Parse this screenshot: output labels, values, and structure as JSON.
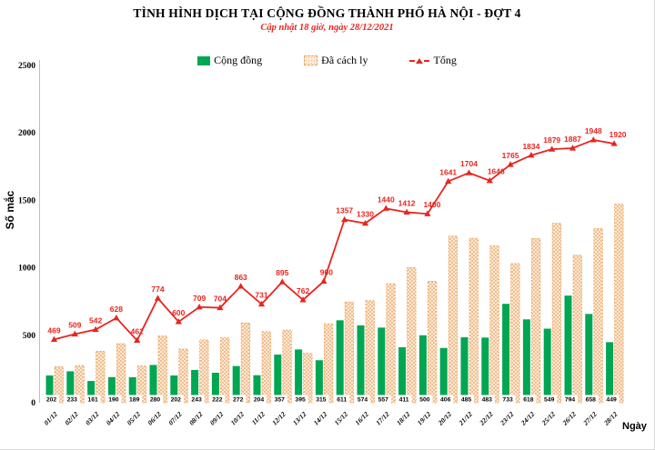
{
  "header": {
    "title": "TÌNH HÌNH DỊCH TẠI CỘNG ĐỒNG THÀNH PHỐ HÀ NỘI - ĐỢT 4",
    "subtitle": "Cập nhật 18 giờ, ngày 28/12/2021"
  },
  "legend": {
    "community": "Cộng đồng",
    "quarantine": "Đã cách ly",
    "total": "Tổng"
  },
  "axes": {
    "ylabel": "Số mắc",
    "xlabel": "Ngày"
  },
  "colors": {
    "community_green": "#00A651",
    "quarantine_fill": "#FDEADA",
    "quarantine_dot": "#F2BE8C",
    "quarantine_border": "#E8A45E",
    "total_red": "#E8251F",
    "axis_gray": "#BFBFBF"
  },
  "chart_data": {
    "type": "bar+line",
    "title": "TÌNH HÌNH DỊCH TẠI CỘNG ĐỒNG THÀNH PHỐ HÀ NỘI - ĐỢT 4",
    "subtitle": "Cập nhật 18 giờ, ngày 28/12/2021",
    "xlabel": "Ngày",
    "ylabel": "Số mắc",
    "ylim": [
      0,
      2500
    ],
    "yticks": [
      0,
      500,
      1000,
      1500,
      2000,
      2500
    ],
    "grid": false,
    "legend_position": "top",
    "categories": [
      "01/12",
      "02/12",
      "03/12",
      "04/12",
      "05/12",
      "06/12",
      "07/12",
      "08/12",
      "09/12",
      "10/12",
      "11/12",
      "12/12",
      "13/12",
      "14/12",
      "15/12",
      "16/12",
      "17/12",
      "18/12",
      "19/12",
      "20/12",
      "21/12",
      "22/12",
      "23/12",
      "24/12",
      "25/12",
      "26/12",
      "27/12",
      "28/12"
    ],
    "series": [
      {
        "name": "Cộng đồng",
        "type": "bar",
        "color": "#00A651",
        "labels_shown": true,
        "values": [
          202,
          233,
          161,
          190,
          189,
          280,
          202,
          243,
          222,
          272,
          204,
          357,
          395,
          315,
          611,
          574,
          557,
          411,
          500,
          406,
          485,
          483,
          733,
          618,
          549,
          794,
          658,
          449
        ]
      },
      {
        "name": "Đã cách ly",
        "type": "bar",
        "color": "#FDEADA",
        "pattern": "checker-dots",
        "labels_shown": false,
        "values": [
          267,
          276,
          381,
          438,
          273,
          494,
          398,
          466,
          482,
          591,
          527,
          538,
          367,
          585,
          746,
          756,
          883,
          1001,
          900,
          1235,
          1219,
          1163,
          1032,
          1216,
          1330,
          1093,
          1290,
          1471
        ]
      },
      {
        "name": "Tổng",
        "type": "line",
        "color": "#E8251F",
        "marker": "triangle",
        "labels_shown": true,
        "values": [
          469,
          509,
          542,
          628,
          462,
          774,
          600,
          709,
          704,
          863,
          731,
          895,
          762,
          900,
          1357,
          1330,
          1440,
          1412,
          1400,
          1641,
          1704,
          1646,
          1765,
          1834,
          1879,
          1887,
          1948,
          1920
        ]
      }
    ]
  }
}
